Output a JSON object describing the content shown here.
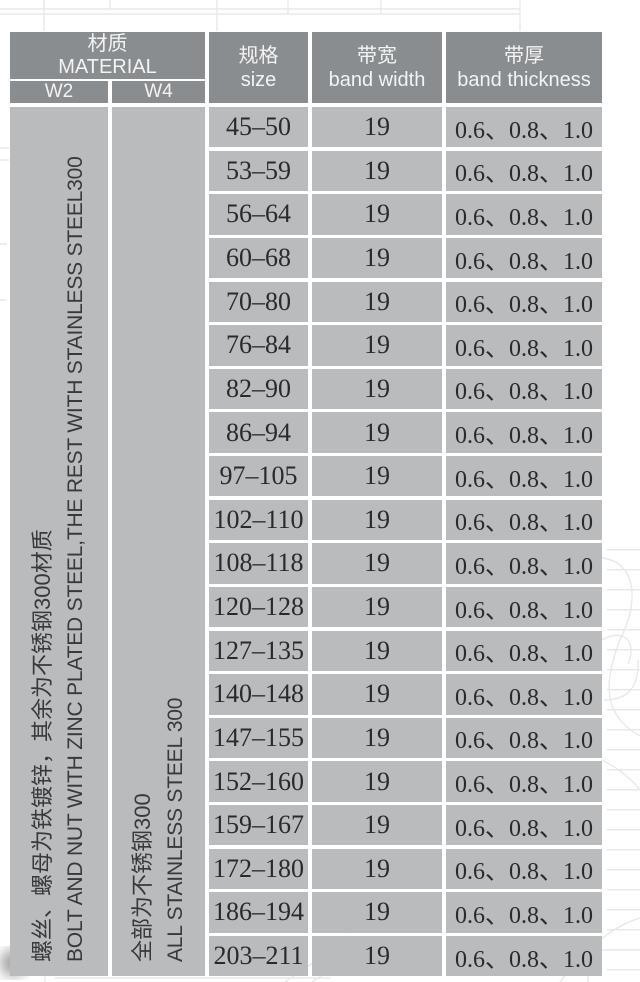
{
  "colors": {
    "header_bg": "#898d8f",
    "cell_bg": "#b9bbbd",
    "header_text": "#f2f3f4",
    "body_text": "#2a2a2c",
    "watermark_line": "#e7e9e9"
  },
  "table": {
    "header": {
      "material": {
        "zh": "材质",
        "en": "MATERIAL"
      },
      "material_sub": [
        {
          "label": "W2"
        },
        {
          "label": "W4"
        }
      ],
      "size": {
        "zh": "规格",
        "en": "size"
      },
      "band_width": {
        "zh": "带宽",
        "en": "band width"
      },
      "band_thickness": {
        "zh": "带厚",
        "en": "band thickness"
      }
    },
    "material_notes": {
      "w2": {
        "zh": "螺丝、螺母为铁镀锌，其余为不锈钢300材质",
        "en": "BOLT AND NUT WITH ZINC PLATED STEEL,THE REST WITH STAINLESS STEEL300"
      },
      "w4": {
        "zh": "全部为不锈钢300",
        "en": "ALL STAINLESS STEEL 300"
      }
    },
    "rows": [
      {
        "size": "45–50",
        "band_width": "19",
        "band_thickness": "0.6、0.8、1.0"
      },
      {
        "size": "53–59",
        "band_width": "19",
        "band_thickness": "0.6、0.8、1.0"
      },
      {
        "size": "56–64",
        "band_width": "19",
        "band_thickness": "0.6、0.8、1.0"
      },
      {
        "size": "60–68",
        "band_width": "19",
        "band_thickness": "0.6、0.8、1.0"
      },
      {
        "size": "70–80",
        "band_width": "19",
        "band_thickness": "0.6、0.8、1.0"
      },
      {
        "size": "76–84",
        "band_width": "19",
        "band_thickness": "0.6、0.8、1.0"
      },
      {
        "size": "82–90",
        "band_width": "19",
        "band_thickness": "0.6、0.8、1.0"
      },
      {
        "size": "86–94",
        "band_width": "19",
        "band_thickness": "0.6、0.8、1.0"
      },
      {
        "size": "97–105",
        "band_width": "19",
        "band_thickness": "0.6、0.8、1.0"
      },
      {
        "size": "102–110",
        "band_width": "19",
        "band_thickness": "0.6、0.8、1.0"
      },
      {
        "size": "108–118",
        "band_width": "19",
        "band_thickness": "0.6、0.8、1.0"
      },
      {
        "size": "120–128",
        "band_width": "19",
        "band_thickness": "0.6、0.8、1.0"
      },
      {
        "size": "127–135",
        "band_width": "19",
        "band_thickness": "0.6、0.8、1.0"
      },
      {
        "size": "140–148",
        "band_width": "19",
        "band_thickness": "0.6、0.8、1.0"
      },
      {
        "size": "147–155",
        "band_width": "19",
        "band_thickness": "0.6、0.8、1.0"
      },
      {
        "size": "152–160",
        "band_width": "19",
        "band_thickness": "0.6、0.8、1.0"
      },
      {
        "size": "159–167",
        "band_width": "19",
        "band_thickness": "0.6、0.8、1.0"
      },
      {
        "size": "172–180",
        "band_width": "19",
        "band_thickness": "0.6、0.8、1.0"
      },
      {
        "size": "186–194",
        "band_width": "19",
        "band_thickness": "0.6、0.8、1.0"
      },
      {
        "size": "203–211",
        "band_width": "19",
        "band_thickness": "0.6、0.8、1.0"
      }
    ]
  }
}
